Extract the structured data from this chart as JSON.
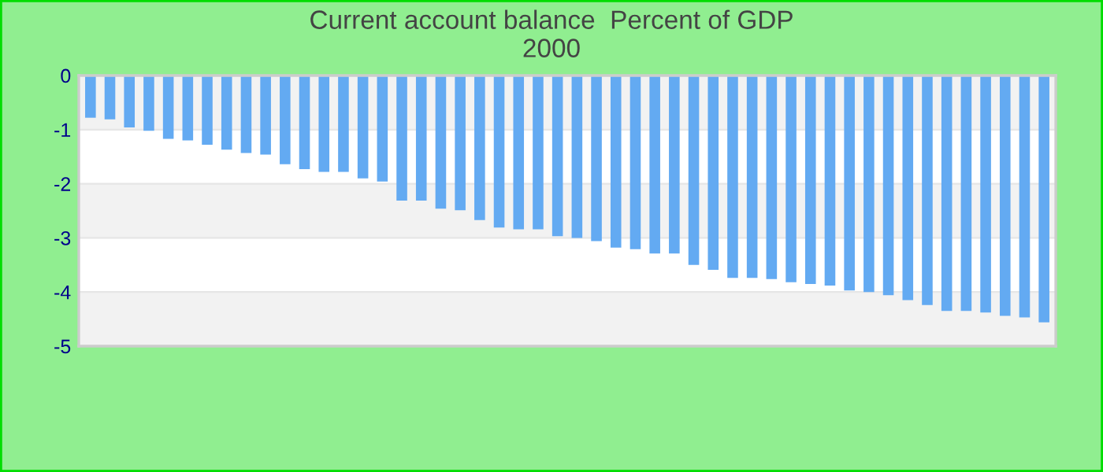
{
  "chart_data": {
    "type": "bar",
    "title": "Current account balance  Percent of GDP",
    "subtitle": "2000",
    "categories": [
      null,
      null,
      null,
      null,
      null,
      null,
      null,
      null,
      null,
      null,
      null,
      null,
      null,
      null,
      null,
      null,
      null,
      null,
      null,
      null,
      null,
      null,
      null,
      null,
      null,
      null,
      null,
      null,
      null,
      null,
      null,
      null,
      null,
      null,
      null,
      null,
      null,
      null,
      null,
      null,
      null,
      null,
      null,
      null,
      null,
      null,
      null,
      null,
      null,
      null
    ],
    "values": [
      -0.78,
      -0.81,
      -0.96,
      -1.02,
      -1.17,
      -1.2,
      -1.28,
      -1.37,
      -1.43,
      -1.46,
      -1.64,
      -1.73,
      -1.78,
      -1.78,
      -1.9,
      -1.96,
      -2.31,
      -2.31,
      -2.46,
      -2.49,
      -2.67,
      -2.81,
      -2.84,
      -2.84,
      -2.97,
      -3.0,
      -3.06,
      -3.18,
      -3.21,
      -3.29,
      -3.29,
      -3.5,
      -3.59,
      -3.74,
      -3.74,
      -3.76,
      -3.82,
      -3.85,
      -3.88,
      -3.97,
      -4.0,
      -4.06,
      -4.15,
      -4.24,
      -4.35,
      -4.35,
      -4.38,
      -4.44,
      -4.47,
      -4.56
    ],
    "color": "#63aaf2",
    "ylim": [
      -5,
      0
    ],
    "yticks": [
      0,
      -1,
      -2,
      -3,
      -4,
      -5
    ],
    "grid": "y",
    "tick_labels": "y",
    "legend": false
  }
}
